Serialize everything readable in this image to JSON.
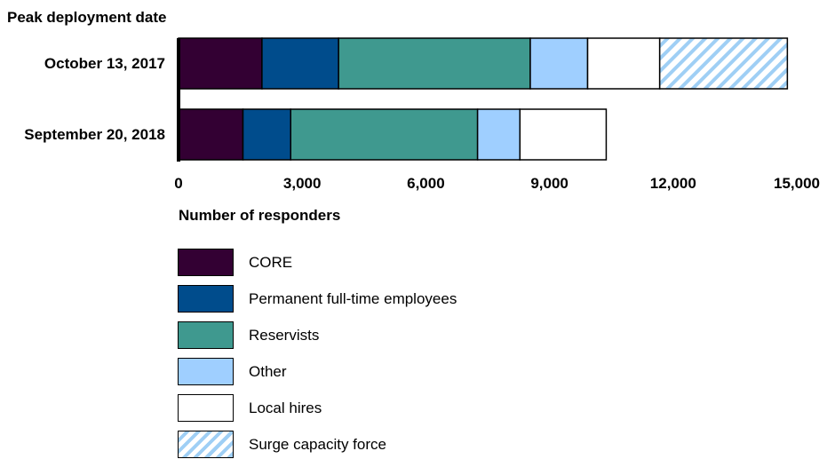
{
  "chart_data": {
    "type": "bar",
    "orientation": "horizontal",
    "stacked": true,
    "ylabel": "Peak deployment date",
    "xlabel": "Number of responders",
    "categories": [
      "October 13, 2017",
      "September 20, 2018"
    ],
    "xlim": [
      0,
      15000
    ],
    "ticks": [
      "0",
      "3,000",
      "6,000",
      "9,000",
      "12,000",
      "15,000"
    ],
    "tick_values": [
      0,
      3000,
      6000,
      9000,
      12000,
      15000
    ],
    "grid": false,
    "legend_position": "bottom",
    "series": [
      {
        "name": "CORE",
        "values": [
          2024,
          1563
        ],
        "color": "#330033"
      },
      {
        "name": "Permanent full-time employees",
        "values": [
          1859,
          1158
        ],
        "color": "#004c8c"
      },
      {
        "name": "Reservists",
        "values": [
          4651,
          4534
        ],
        "color": "#3f998f"
      },
      {
        "name": "Other",
        "values": [
          1391,
          1028
        ],
        "color": "#9fcfff"
      },
      {
        "name": "Local hires",
        "values": [
          1749,
          2093
        ],
        "color": "#ffffff"
      },
      {
        "name": "Surge capacity force",
        "values": [
          3097,
          0
        ],
        "color": "#9fcff5",
        "pattern": "hatched"
      }
    ]
  }
}
